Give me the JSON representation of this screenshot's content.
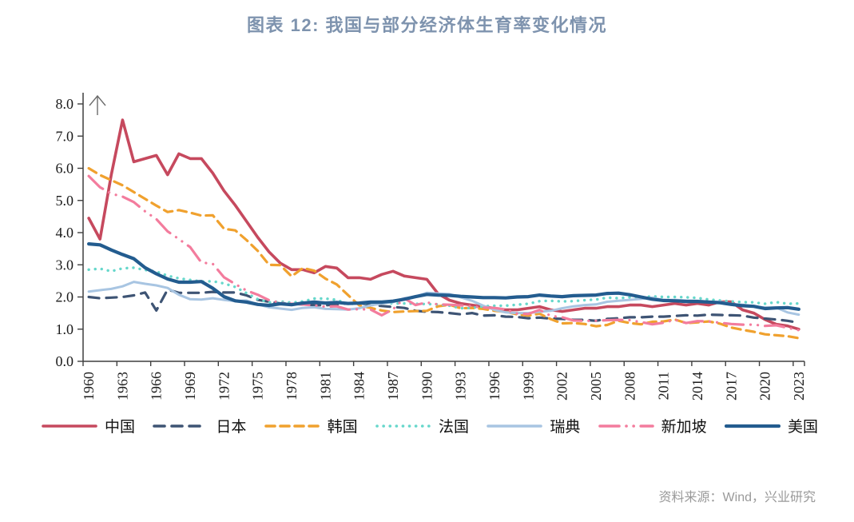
{
  "title": "图表 12: 我国与部分经济体生育率变化情况",
  "source": "资料来源：Wind，兴业研究",
  "chart_data": {
    "type": "line",
    "title": "图表 12: 我国与部分经济体生育率变化情况",
    "xlabel": "",
    "ylabel": "",
    "ylim": [
      0.0,
      8.0
    ],
    "y_ticks": [
      "0.0",
      "1.0",
      "2.0",
      "3.0",
      "4.0",
      "5.0",
      "6.0",
      "7.0",
      "8.0"
    ],
    "grid": false,
    "legend_position": "bottom",
    "x": [
      1960,
      1961,
      1962,
      1963,
      1964,
      1965,
      1966,
      1967,
      1968,
      1969,
      1970,
      1971,
      1972,
      1973,
      1974,
      1975,
      1976,
      1977,
      1978,
      1979,
      1980,
      1981,
      1982,
      1983,
      1984,
      1985,
      1986,
      1987,
      1988,
      1989,
      1990,
      1991,
      1992,
      1993,
      1994,
      1995,
      1996,
      1997,
      1998,
      1999,
      2000,
      2001,
      2002,
      2003,
      2004,
      2005,
      2006,
      2007,
      2008,
      2009,
      2010,
      2011,
      2012,
      2013,
      2014,
      2015,
      2016,
      2017,
      2018,
      2019,
      2020,
      2021,
      2022,
      2023
    ],
    "x_tick_labels": [
      "1960",
      "1963",
      "1966",
      "1969",
      "1972",
      "1975",
      "1978",
      "1981",
      "1984",
      "1987",
      "1990",
      "1993",
      "1996",
      "1999",
      "2002",
      "2005",
      "2008",
      "2011",
      "2014",
      "2017",
      "2020",
      "2023"
    ],
    "series": [
      {
        "key": "china",
        "name": "中国",
        "color": "#C6495E",
        "style": "solid",
        "width": 3.6,
        "values": [
          4.45,
          3.8,
          5.8,
          7.5,
          6.2,
          6.3,
          6.4,
          5.8,
          6.45,
          6.3,
          6.3,
          5.85,
          5.3,
          4.85,
          4.35,
          3.85,
          3.4,
          3.05,
          2.85,
          2.85,
          2.75,
          2.95,
          2.9,
          2.6,
          2.6,
          2.55,
          2.7,
          2.8,
          2.65,
          2.6,
          2.55,
          2.1,
          1.9,
          1.8,
          1.75,
          1.7,
          1.65,
          1.6,
          1.6,
          1.65,
          1.7,
          1.6,
          1.55,
          1.6,
          1.65,
          1.65,
          1.7,
          1.7,
          1.75,
          1.75,
          1.7,
          1.75,
          1.8,
          1.75,
          1.8,
          1.75,
          1.85,
          1.85,
          1.6,
          1.5,
          1.3,
          1.15,
          1.1,
          1.0
        ]
      },
      {
        "key": "japan",
        "name": "日本",
        "color": "#3E5474",
        "style": "dashed",
        "dash": "13 9",
        "width": 3.2,
        "values": [
          2.0,
          1.96,
          1.98,
          2.0,
          2.05,
          2.14,
          1.58,
          2.23,
          2.13,
          2.13,
          2.13,
          2.16,
          2.14,
          2.14,
          2.05,
          1.91,
          1.85,
          1.8,
          1.79,
          1.77,
          1.75,
          1.74,
          1.77,
          1.8,
          1.81,
          1.76,
          1.72,
          1.69,
          1.66,
          1.57,
          1.54,
          1.53,
          1.5,
          1.46,
          1.5,
          1.42,
          1.43,
          1.39,
          1.38,
          1.34,
          1.36,
          1.33,
          1.32,
          1.29,
          1.29,
          1.26,
          1.32,
          1.34,
          1.37,
          1.37,
          1.39,
          1.39,
          1.41,
          1.43,
          1.42,
          1.45,
          1.44,
          1.43,
          1.42,
          1.36,
          1.33,
          1.3,
          1.26,
          1.2
        ]
      },
      {
        "key": "korea",
        "name": "韩国",
        "color": "#F0A12E",
        "style": "dashed",
        "dash": "11 7",
        "width": 3.2,
        "values": [
          6.0,
          5.79,
          5.63,
          5.47,
          5.26,
          5.05,
          4.84,
          4.64,
          4.7,
          4.62,
          4.53,
          4.54,
          4.12,
          4.07,
          3.77,
          3.43,
          3.0,
          2.99,
          2.64,
          2.9,
          2.82,
          2.57,
          2.39,
          2.06,
          1.74,
          1.66,
          1.58,
          1.53,
          1.55,
          1.56,
          1.57,
          1.71,
          1.76,
          1.65,
          1.66,
          1.63,
          1.57,
          1.54,
          1.46,
          1.42,
          1.48,
          1.31,
          1.18,
          1.19,
          1.16,
          1.09,
          1.13,
          1.26,
          1.19,
          1.15,
          1.23,
          1.24,
          1.3,
          1.19,
          1.21,
          1.24,
          1.17,
          1.05,
          0.98,
          0.92,
          0.84,
          0.81,
          0.78,
          0.72
        ]
      },
      {
        "key": "france",
        "name": "法国",
        "color": "#66D7CB",
        "style": "dotted",
        "dash": "0.1 8",
        "width": 3.4,
        "values": [
          2.85,
          2.88,
          2.8,
          2.89,
          2.91,
          2.84,
          2.79,
          2.66,
          2.58,
          2.53,
          2.48,
          2.49,
          2.42,
          2.31,
          2.12,
          1.93,
          1.83,
          1.86,
          1.82,
          1.86,
          1.95,
          1.95,
          1.91,
          1.78,
          1.8,
          1.81,
          1.83,
          1.8,
          1.8,
          1.79,
          1.78,
          1.77,
          1.73,
          1.65,
          1.66,
          1.71,
          1.73,
          1.73,
          1.76,
          1.79,
          1.87,
          1.88,
          1.86,
          1.87,
          1.9,
          1.92,
          1.98,
          1.96,
          1.99,
          1.99,
          2.02,
          2.0,
          2.0,
          1.99,
          1.97,
          1.92,
          1.89,
          1.86,
          1.84,
          1.83,
          1.79,
          1.84,
          1.79,
          1.8
        ]
      },
      {
        "key": "sweden",
        "name": "瑞典",
        "color": "#A8C5E2",
        "style": "solid",
        "width": 3.0,
        "values": [
          2.17,
          2.21,
          2.25,
          2.33,
          2.47,
          2.41,
          2.36,
          2.28,
          2.07,
          1.93,
          1.92,
          1.96,
          1.91,
          1.87,
          1.89,
          1.77,
          1.68,
          1.64,
          1.6,
          1.66,
          1.68,
          1.63,
          1.62,
          1.61,
          1.65,
          1.74,
          1.8,
          1.84,
          1.96,
          2.01,
          2.13,
          2.11,
          2.09,
          1.99,
          1.88,
          1.73,
          1.6,
          1.52,
          1.5,
          1.5,
          1.54,
          1.57,
          1.65,
          1.71,
          1.75,
          1.77,
          1.85,
          1.88,
          1.91,
          1.94,
          1.98,
          1.9,
          1.91,
          1.89,
          1.88,
          1.85,
          1.85,
          1.78,
          1.76,
          1.71,
          1.67,
          1.67,
          1.52,
          1.45
        ]
      },
      {
        "key": "singapore",
        "name": "新加坡",
        "color": "#F37C9D",
        "style": "dash-dot",
        "dash": "24 9 0.1 9 0.1 9",
        "width": 3.2,
        "values": [
          5.76,
          5.41,
          5.21,
          5.12,
          4.95,
          4.66,
          4.42,
          4.04,
          3.8,
          3.55,
          3.07,
          3.03,
          2.61,
          2.4,
          2.2,
          2.07,
          1.9,
          1.82,
          1.79,
          1.77,
          1.74,
          1.7,
          1.71,
          1.61,
          1.62,
          1.61,
          1.43,
          1.62,
          1.96,
          1.75,
          1.83,
          1.77,
          1.76,
          1.74,
          1.71,
          1.67,
          1.66,
          1.61,
          1.48,
          1.47,
          1.6,
          1.41,
          1.37,
          1.27,
          1.26,
          1.26,
          1.28,
          1.29,
          1.28,
          1.22,
          1.15,
          1.2,
          1.29,
          1.19,
          1.25,
          1.24,
          1.2,
          1.16,
          1.14,
          1.14,
          1.1,
          1.12,
          1.04,
          0.97
        ]
      },
      {
        "key": "usa",
        "name": "美国",
        "color": "#235C8F",
        "style": "solid",
        "width": 4.2,
        "values": [
          3.65,
          3.62,
          3.46,
          3.32,
          3.19,
          2.91,
          2.72,
          2.56,
          2.46,
          2.46,
          2.48,
          2.27,
          2.01,
          1.88,
          1.84,
          1.77,
          1.74,
          1.79,
          1.76,
          1.81,
          1.84,
          1.81,
          1.83,
          1.8,
          1.81,
          1.84,
          1.84,
          1.87,
          1.93,
          2.01,
          2.08,
          2.06,
          2.05,
          2.02,
          2.0,
          1.98,
          1.98,
          1.97,
          2.0,
          2.01,
          2.06,
          2.03,
          2.01,
          2.04,
          2.05,
          2.06,
          2.11,
          2.12,
          2.07,
          2.0,
          1.93,
          1.89,
          1.88,
          1.86,
          1.86,
          1.84,
          1.82,
          1.77,
          1.73,
          1.71,
          1.64,
          1.66,
          1.67,
          1.62
        ]
      }
    ]
  }
}
